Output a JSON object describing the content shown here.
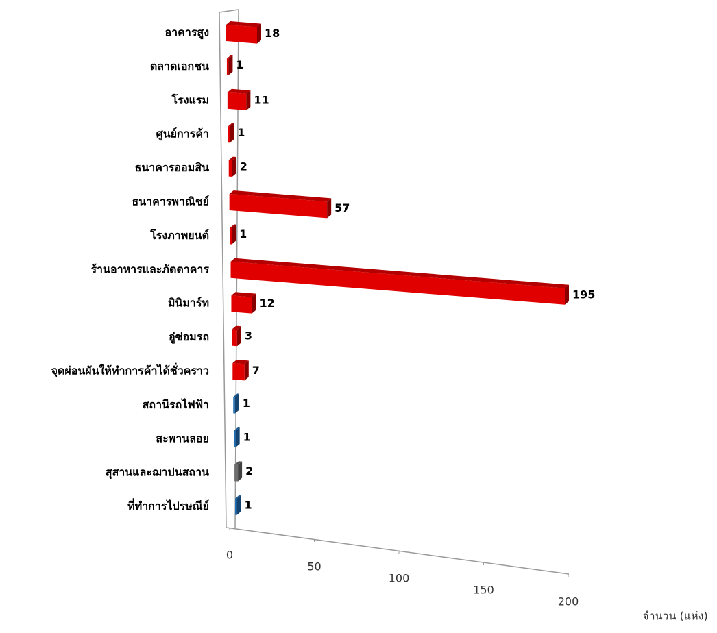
{
  "chart_data": {
    "type": "bar3d-horizontal",
    "categories": [
      "อาคารสูง",
      "ตลาดเอกชน",
      "โรงแรม",
      "ศูนย์การค้า",
      "ธนาคารออมสิน",
      "ธนาคารพาณิชย์",
      "โรงภาพยนต์",
      "ร้านอาหารและภัตตาคาร",
      "มินิมาร์ท",
      "อู่ซ่อมรถ",
      "จุดผ่อนผันให้ทำการค้าได้ชั่วคราว",
      "สถานีรถไฟฟ้า",
      "สะพานลอย",
      "สุสานและฌาปนสถาน",
      "ที่ทำการไปรษณีย์"
    ],
    "values": [
      18,
      1,
      11,
      1,
      2,
      57,
      1,
      195,
      12,
      3,
      7,
      1,
      1,
      2,
      1
    ],
    "colors": [
      "#e00000",
      "#e00000",
      "#e00000",
      "#e00000",
      "#e00000",
      "#e00000",
      "#e00000",
      "#e00000",
      "#e00000",
      "#e00000",
      "#e00000",
      "#1f6fb8",
      "#1f6fb8",
      "#6e6e6e",
      "#1f6fb8"
    ],
    "xlim": [
      0,
      200
    ],
    "xticks": [
      0,
      50,
      100,
      150,
      200
    ],
    "x_label": "จำนวน (แห่ง)"
  }
}
